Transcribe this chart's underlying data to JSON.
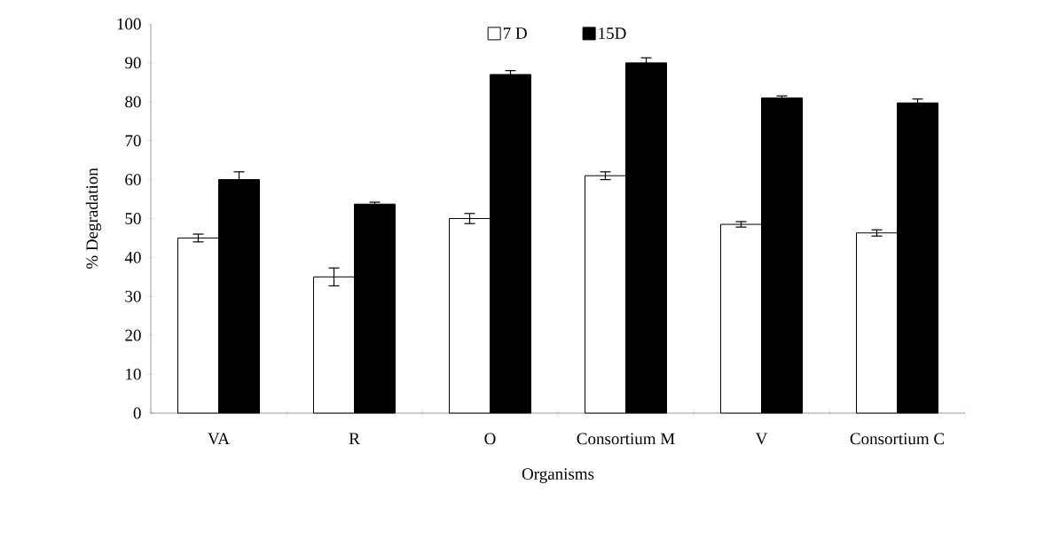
{
  "chart_data": {
    "type": "bar",
    "xlabel": "Organisms",
    "ylabel": "% Degradation",
    "categories": [
      "VA",
      "R",
      "O",
      "Consortium M",
      "V",
      "Consortium C"
    ],
    "series": [
      {
        "name": "7 D",
        "color": "#ffffff",
        "values": [
          45,
          35,
          50,
          61,
          48.5,
          46.3
        ],
        "errors": [
          1,
          2.3,
          1.3,
          1,
          0.7,
          0.8
        ]
      },
      {
        "name": "15D",
        "color": "#000000",
        "values": [
          60,
          53.7,
          87,
          90,
          81,
          79.7
        ],
        "errors": [
          2,
          0.5,
          1,
          1.3,
          0.5,
          1
        ]
      }
    ],
    "ylim": [
      0,
      100
    ],
    "yticks": [
      0,
      10,
      20,
      30,
      40,
      50,
      60,
      70,
      80,
      90,
      100
    ],
    "legend": "top",
    "grid": false
  }
}
